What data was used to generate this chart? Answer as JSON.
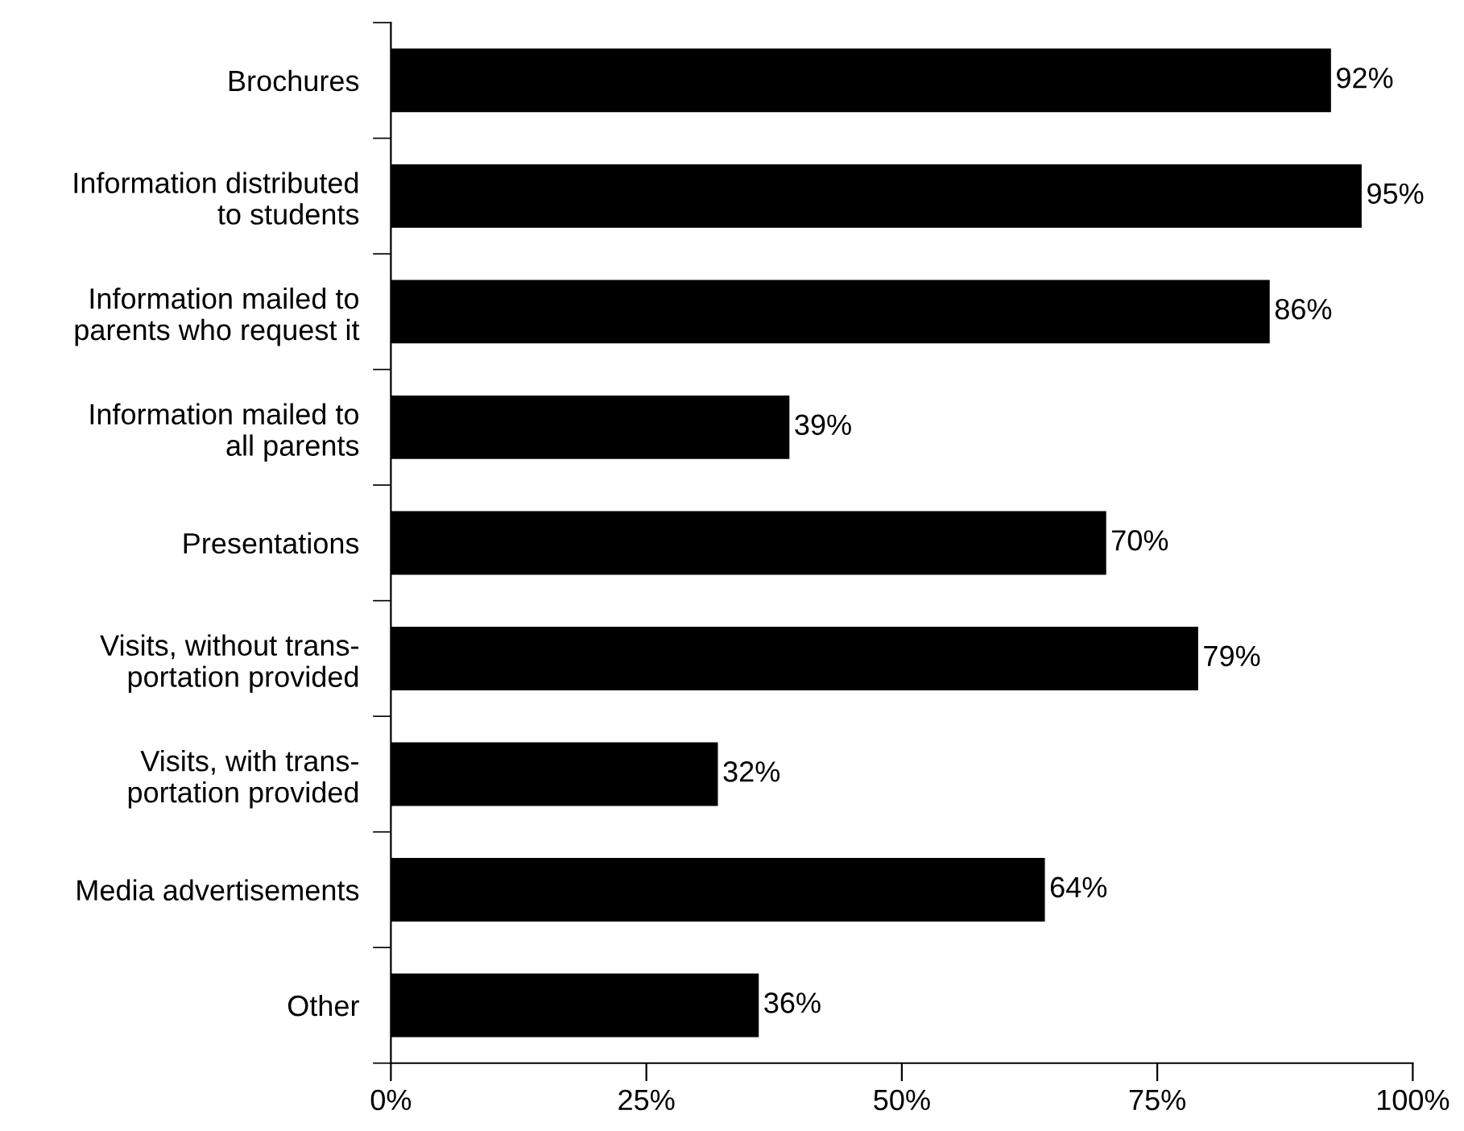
{
  "chart_data": {
    "type": "bar",
    "orientation": "horizontal",
    "categories": [
      "Brochures",
      "Information distributed\nto students",
      "Information mailed to\nparents who request it",
      "Information mailed to\nall parents",
      "Presentations",
      "Visits, without trans-\nportation provided",
      "Visits, with trans-\nportation provided",
      "Media advertisements",
      "Other"
    ],
    "values": [
      92,
      95,
      86,
      39,
      70,
      79,
      32,
      64,
      36
    ],
    "value_labels": [
      "92%",
      "95%",
      "86%",
      "39%",
      "70%",
      "79%",
      "32%",
      "64%",
      "36%"
    ],
    "color": "#000000",
    "xlim": [
      0,
      100
    ],
    "xticks": [
      {
        "value": 0,
        "label": "0%"
      },
      {
        "value": 25,
        "label": "25%"
      },
      {
        "value": 50,
        "label": "50%"
      },
      {
        "value": 75,
        "label": "75%"
      },
      {
        "value": 100,
        "label": "100%"
      }
    ],
    "grid": false,
    "legend": false
  }
}
